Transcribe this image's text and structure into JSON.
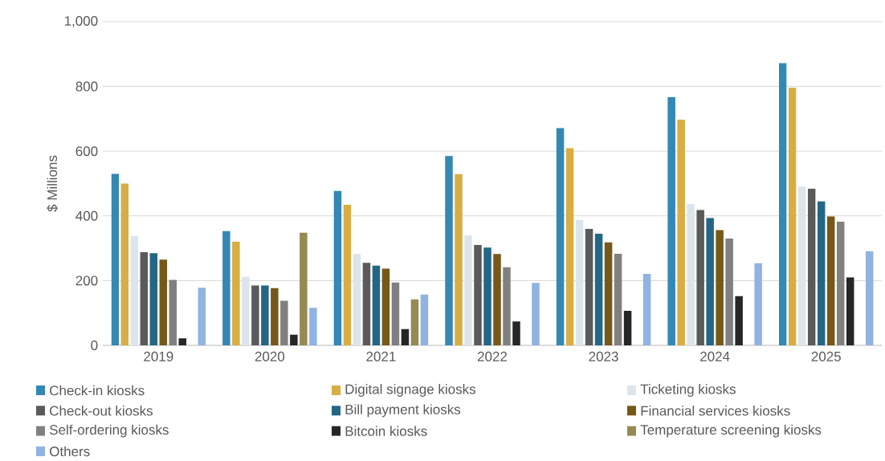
{
  "chart_data": {
    "type": "bar",
    "ylabel": "$ Millions",
    "categories": [
      "2019",
      "2020",
      "2021",
      "2022",
      "2023",
      "2024",
      "2025"
    ],
    "ylim": [
      0,
      1000
    ],
    "yticks": [
      0,
      200,
      400,
      600,
      800,
      {
        "value": 1000,
        "label": "1,000"
      }
    ],
    "grid": "y",
    "legend": "bottom",
    "series": [
      {
        "name": "Check-in kiosks",
        "color": "#3388b4",
        "values": [
          530,
          353,
          477,
          585,
          671,
          767,
          872
        ]
      },
      {
        "name": "Digital signage kiosks",
        "color": "#d8ad43",
        "values": [
          500,
          320,
          434,
          529,
          609,
          697,
          796
        ]
      },
      {
        "name": "Ticketing kiosks",
        "color": "#dde5ec",
        "values": [
          338,
          212,
          283,
          340,
          387,
          437,
          491
        ]
      },
      {
        "name": "Check-out kiosks",
        "color": "#5a5a5a",
        "values": [
          288,
          185,
          255,
          310,
          360,
          418,
          484
        ]
      },
      {
        "name": "Bill payment kiosks",
        "color": "#246685",
        "values": [
          285,
          185,
          246,
          302,
          345,
          393,
          445
        ]
      },
      {
        "name": "Financial services kiosks",
        "color": "#765819",
        "values": [
          265,
          177,
          237,
          282,
          318,
          356,
          398
        ]
      },
      {
        "name": "Self-ordering kiosks",
        "color": "#808080",
        "values": [
          202,
          138,
          194,
          241,
          283,
          330,
          382
        ]
      },
      {
        "name": "Bitcoin kiosks",
        "color": "#262626",
        "values": [
          22,
          33,
          50,
          74,
          107,
          152,
          210
        ]
      },
      {
        "name": "Temperature screening kiosks",
        "color": "#958a52",
        "values": [
          null,
          348,
          142,
          null,
          null,
          null,
          null
        ]
      },
      {
        "name": "Others",
        "color": "#90b3e2",
        "values": [
          178,
          116,
          157,
          193,
          221,
          254,
          291
        ]
      }
    ]
  }
}
